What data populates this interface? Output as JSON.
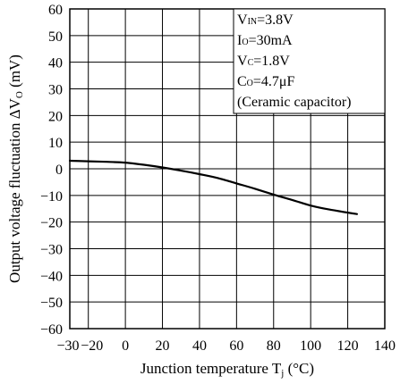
{
  "chart_data": {
    "type": "line",
    "xlabel": "Junction temperature T",
    "xlabel_sub": "j",
    "xlabel_unit": " (°C)",
    "ylabel": "Output voltage fluctuation ΔV",
    "ylabel_sub": "O",
    "ylabel_unit": " (mV)",
    "xlim": [
      -30,
      140
    ],
    "ylim": [
      -60,
      60
    ],
    "x_ticks": [
      -30,
      -20,
      0,
      20,
      40,
      60,
      80,
      100,
      120,
      140
    ],
    "x_tick_labels": [
      "−30",
      "−20",
      "0",
      "20",
      "40",
      "60",
      "80",
      "100",
      "120",
      "140"
    ],
    "y_ticks": [
      60,
      50,
      40,
      30,
      20,
      10,
      0,
      -10,
      -20,
      -30,
      -40,
      -50,
      -60
    ],
    "y_tick_labels": [
      "60",
      "50",
      "40",
      "30",
      "20",
      "10",
      "0",
      "−10",
      "−20",
      "−30",
      "−40",
      "−50",
      "−60"
    ],
    "grid": true,
    "series": [
      {
        "x": [
          -30,
          -20,
          -10,
          0,
          10,
          20,
          30,
          40,
          50,
          60,
          70,
          80,
          90,
          100,
          110,
          125
        ],
        "y": [
          3.0,
          2.8,
          2.6,
          2.3,
          1.5,
          0.5,
          -0.7,
          -2.0,
          -3.5,
          -5.5,
          -7.5,
          -9.7,
          -11.7,
          -13.8,
          -15.3,
          -17.0
        ]
      }
    ],
    "annotation": [
      {
        "main": "V",
        "sub": "IN",
        "rest": "=3.8V"
      },
      {
        "main": "I",
        "sub": "O",
        "rest": "=30mA"
      },
      {
        "main": "V",
        "sub": "C",
        "rest": "=1.8V"
      },
      {
        "main": "C",
        "sub": "O",
        "rest": "=4.7μF"
      },
      {
        "main": "(Ceramic capacitor)",
        "sub": "",
        "rest": ""
      }
    ],
    "colors": {
      "line": "#000000",
      "grid": "#000000",
      "background": "#ffffff"
    }
  }
}
